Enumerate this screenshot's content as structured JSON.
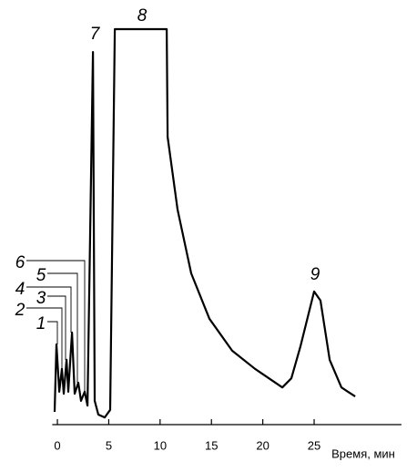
{
  "chart_data": {
    "type": "line",
    "xlabel": "Время, мин",
    "x": [
      -0.27,
      -0.09,
      0.18,
      0.44,
      0.62,
      0.89,
      1.06,
      1.42,
      1.68,
      2.04,
      2.3,
      2.66,
      2.93,
      3.46,
      3.63,
      3.99,
      4.61,
      5.14,
      5.59,
      10.64,
      10.73,
      11.7,
      13.03,
      14.8,
      17.02,
      19.24,
      21.9,
      22.78,
      23.67,
      25.0,
      25.62,
      26.51,
      27.66,
      29.0
    ],
    "values": [
      3.0,
      20.1,
      8.1,
      13.9,
      7.6,
      16.2,
      8.1,
      23.1,
      7.6,
      10.4,
      5.8,
      8.1,
      4.6,
      94.2,
      5.8,
      2.3,
      1.6,
      3.5,
      100,
      100,
      72.7,
      54.3,
      38.1,
      26.6,
      18.5,
      13.9,
      9.2,
      11.5,
      19.6,
      33.5,
      31.2,
      16.2,
      9.2,
      6.9
    ],
    "color": "#000000",
    "xlim": [
      -0.5,
      33.5
    ],
    "xticks": [
      0,
      5,
      10,
      15,
      20,
      25
    ],
    "ylim": [
      0,
      100
    ],
    "annotations": [
      "1",
      "2",
      "3",
      "4",
      "5",
      "6",
      "7",
      "8",
      "9"
    ]
  }
}
